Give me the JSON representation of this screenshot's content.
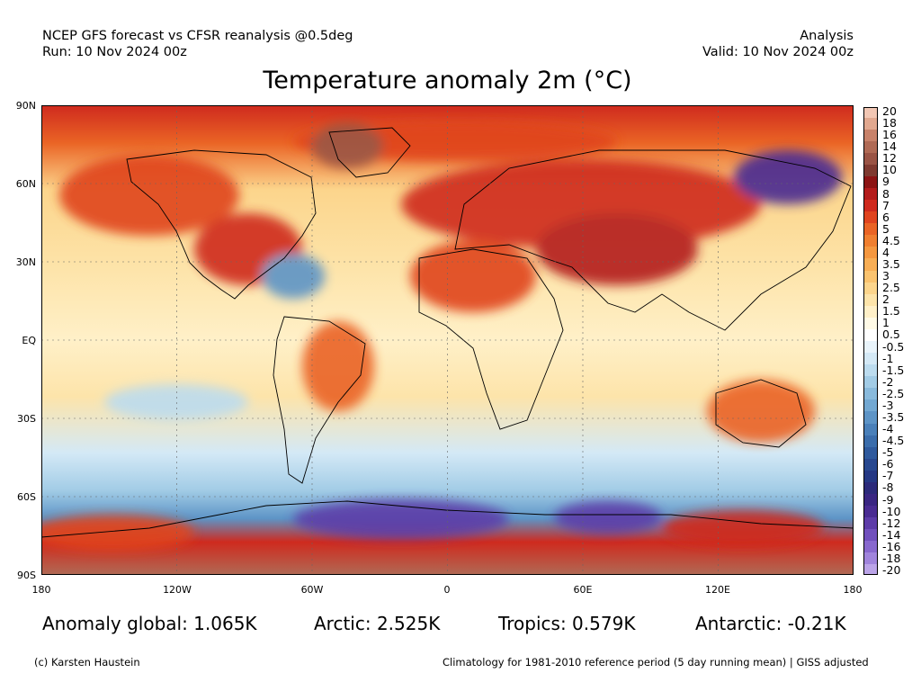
{
  "header": {
    "left_line1": "NCEP GFS forecast vs CFSR reanalysis @0.5deg",
    "left_line2": "Run: 10 Nov 2024 00z",
    "right_line1": "Analysis",
    "right_line2": "Valid: 10 Nov 2024 00z"
  },
  "title": "Temperature anomaly 2m (°C)",
  "axes": {
    "lat_labels": [
      "90N",
      "60N",
      "30N",
      "EQ",
      "30S",
      "60S",
      "90S"
    ],
    "lon_labels": [
      "180",
      "120W",
      "60W",
      "0",
      "60E",
      "120E",
      "180"
    ]
  },
  "colorbar": {
    "labels": [
      "20",
      "18",
      "16",
      "14",
      "12",
      "10",
      "9",
      "8",
      "7",
      "6",
      "5",
      "4.5",
      "4",
      "3.5",
      "3",
      "2.5",
      "2",
      "1.5",
      "1",
      "0.5",
      "-0.5",
      "-1",
      "-1.5",
      "-2",
      "-2.5",
      "-3",
      "-3.5",
      "-4",
      "-4.5",
      "-5",
      "-6",
      "-7",
      "-8",
      "-9",
      "-10",
      "-12",
      "-14",
      "-16",
      "-18",
      "-20"
    ],
    "colors": [
      "#f2c7b4",
      "#e1a88f",
      "#c8826a",
      "#b06a55",
      "#9a5445",
      "#7f3a30",
      "#8c1414",
      "#b31c1c",
      "#cf2a1e",
      "#e0441f",
      "#ea6425",
      "#f07f30",
      "#f59840",
      "#f8ae55",
      "#fac36f",
      "#fcd58c",
      "#fde4aa",
      "#fff0c8",
      "#fffae6",
      "#ffffff",
      "#e9f4fb",
      "#d4e9f6",
      "#bcdcef",
      "#a2cce6",
      "#89badc",
      "#72a8d2",
      "#5d94c6",
      "#4a80b9",
      "#3b6dab",
      "#2f5a9d",
      "#28488f",
      "#253884",
      "#2c2a7a",
      "#3a2682",
      "#4a2c92",
      "#5d3ca8",
      "#7150bd",
      "#8868ce",
      "#a084dc",
      "#bba4e8"
    ]
  },
  "stats": {
    "global": "Anomaly global: 1.065K",
    "arctic": "Arctic: 2.525K",
    "tropics": "Tropics: 0.579K",
    "antarctic": "Antarctic: -0.21K"
  },
  "footer": {
    "credit": "(c) Karsten Haustein",
    "note": "Climatology for 1981-2010 reference period (5 day running mean) | GISS adjusted"
  }
}
